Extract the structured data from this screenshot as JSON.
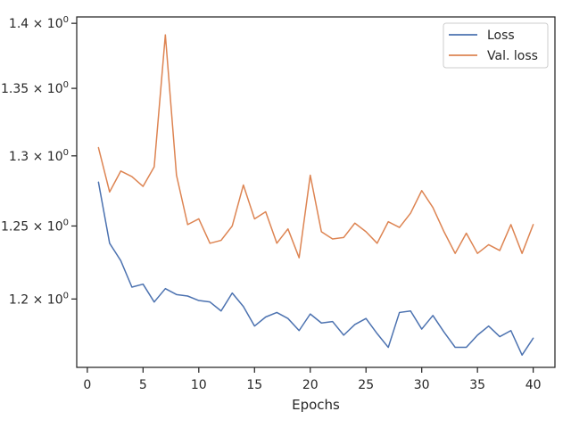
{
  "chart_data": {
    "type": "line",
    "xlabel": "Epochs",
    "ylabel": "",
    "xlim": [
      -0.95,
      41.95
    ],
    "ylim": [
      1.155,
      1.405
    ],
    "y_scale": "log",
    "grid": false,
    "legend_position": "top-right",
    "x_ticks": [
      0,
      5,
      10,
      15,
      20,
      25,
      30,
      35,
      40
    ],
    "x_tick_labels": [
      "0",
      "5",
      "10",
      "15",
      "20",
      "25",
      "30",
      "35",
      "40"
    ],
    "y_ticks": [
      1.2,
      1.25,
      1.3,
      1.35,
      1.4
    ],
    "y_tick_labels": [
      {
        "mantissa": "1.2",
        "base": "10",
        "exp": "0"
      },
      {
        "mantissa": "1.25",
        "base": "10",
        "exp": "0"
      },
      {
        "mantissa": "1.3",
        "base": "10",
        "exp": "0"
      },
      {
        "mantissa": "1.35",
        "base": "10",
        "exp": "0"
      },
      {
        "mantissa": "1.4",
        "base": "10",
        "exp": "0"
      }
    ],
    "x": [
      1,
      2,
      3,
      4,
      5,
      6,
      7,
      8,
      9,
      10,
      11,
      12,
      13,
      14,
      15,
      16,
      17,
      18,
      19,
      20,
      21,
      22,
      23,
      24,
      25,
      26,
      27,
      28,
      29,
      30,
      31,
      32,
      33,
      34,
      35,
      36,
      37,
      38,
      39,
      40
    ],
    "series": [
      {
        "name": "Loss",
        "color": "#4c72b0",
        "values": [
          1.281,
          1.238,
          1.226,
          1.208,
          1.21,
          1.198,
          1.207,
          1.203,
          1.202,
          1.199,
          1.198,
          1.192,
          1.204,
          1.195,
          1.182,
          1.188,
          1.191,
          1.187,
          1.179,
          1.19,
          1.184,
          1.185,
          1.176,
          1.183,
          1.187,
          1.177,
          1.168,
          1.191,
          1.192,
          1.18,
          1.189,
          1.178,
          1.168,
          1.168,
          1.176,
          1.182,
          1.175,
          1.179,
          1.163,
          1.174
        ]
      },
      {
        "name": "Val. loss",
        "color": "#dd8452",
        "values": [
          1.306,
          1.274,
          1.289,
          1.285,
          1.278,
          1.292,
          1.391,
          1.286,
          1.251,
          1.255,
          1.238,
          1.24,
          1.25,
          1.279,
          1.255,
          1.26,
          1.238,
          1.248,
          1.228,
          1.286,
          1.246,
          1.241,
          1.242,
          1.252,
          1.246,
          1.238,
          1.253,
          1.249,
          1.259,
          1.275,
          1.263,
          1.246,
          1.231,
          1.245,
          1.231,
          1.237,
          1.233,
          1.251,
          1.231,
          1.251
        ]
      }
    ]
  }
}
